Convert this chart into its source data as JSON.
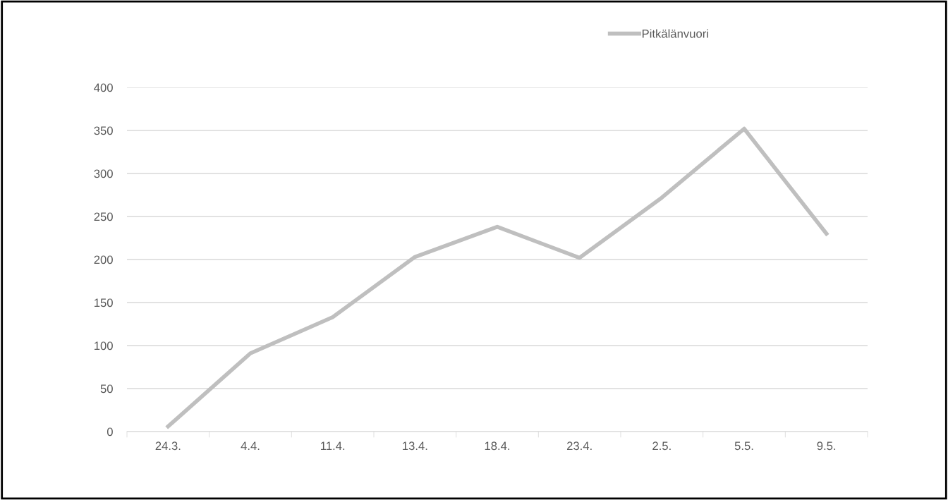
{
  "chart_data": {
    "type": "line",
    "categories": [
      "24.3.",
      "4.4.",
      "11.4.",
      "13.4.",
      "18.4.",
      "23.4.",
      "2.5.",
      "5.5.",
      "9.5."
    ],
    "series": [
      {
        "name": "Pitkälänvuori",
        "color": "#bfbfbf",
        "values": [
          6,
          91,
          133,
          203,
          238,
          202,
          272,
          352,
          230
        ]
      }
    ],
    "ylim": [
      0,
      400
    ],
    "yticks": [
      0,
      50,
      100,
      150,
      200,
      250,
      300,
      350,
      400
    ],
    "grid": "y",
    "legend": "top right",
    "marker": "none",
    "line_style": "solid"
  }
}
